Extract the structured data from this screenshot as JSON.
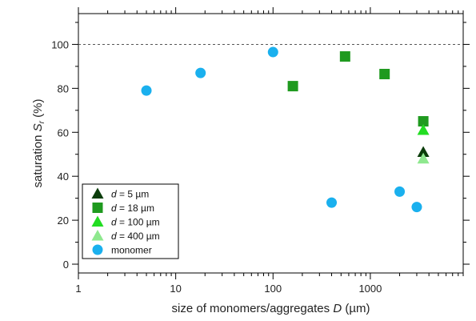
{
  "chart_data": {
    "type": "scatter",
    "x_scale": "log",
    "xlim": [
      1,
      9000
    ],
    "ylim": [
      -4,
      114
    ],
    "x_ticks": [
      1,
      10,
      100,
      1000
    ],
    "x_tick_labels": [
      "1",
      "10",
      "100",
      "1000"
    ],
    "y_ticks": [
      0,
      20,
      40,
      60,
      80,
      100
    ],
    "y_tick_labels": [
      "0",
      "20",
      "40",
      "60",
      "80",
      "100"
    ],
    "xlabel": {
      "prefix": "size of monomers/aggregates ",
      "var": "D",
      "suffix": " (µm)"
    },
    "ylabel": {
      "prefix": "saturation ",
      "var": "S",
      "sub": "r",
      "suffix": " (%)"
    },
    "reference_line": {
      "y": 100,
      "style": "dashed"
    },
    "grid": false,
    "legend_position": "bottom-left",
    "series": [
      {
        "legend": {
          "var": "d",
          "text": " = 5 µm"
        },
        "marker": "triangle",
        "color": "#0b3d0b",
        "points": [
          [
            3500,
            51
          ]
        ]
      },
      {
        "legend": {
          "var": "d",
          "text": " = 18 µm"
        },
        "marker": "square",
        "color": "#1f9a1f",
        "points": [
          [
            160,
            81
          ],
          [
            550,
            94.5
          ],
          [
            1400,
            86.5
          ],
          [
            3500,
            65
          ]
        ]
      },
      {
        "legend": {
          "var": "d",
          "text": " = 100 µm"
        },
        "marker": "triangle",
        "color": "#22dd22",
        "points": [
          [
            3500,
            61
          ]
        ]
      },
      {
        "legend": {
          "var": "d",
          "text": " = 400 µm"
        },
        "marker": "triangle",
        "color": "#8ee88e",
        "points": [
          [
            3500,
            48
          ]
        ]
      },
      {
        "legend": {
          "var": "",
          "text": "monomer"
        },
        "marker": "circle",
        "color": "#1ab0ee",
        "points": [
          [
            5,
            79
          ],
          [
            18,
            87
          ],
          [
            100,
            96.5
          ],
          [
            400,
            28
          ],
          [
            2000,
            33
          ],
          [
            3000,
            26
          ]
        ]
      }
    ]
  }
}
